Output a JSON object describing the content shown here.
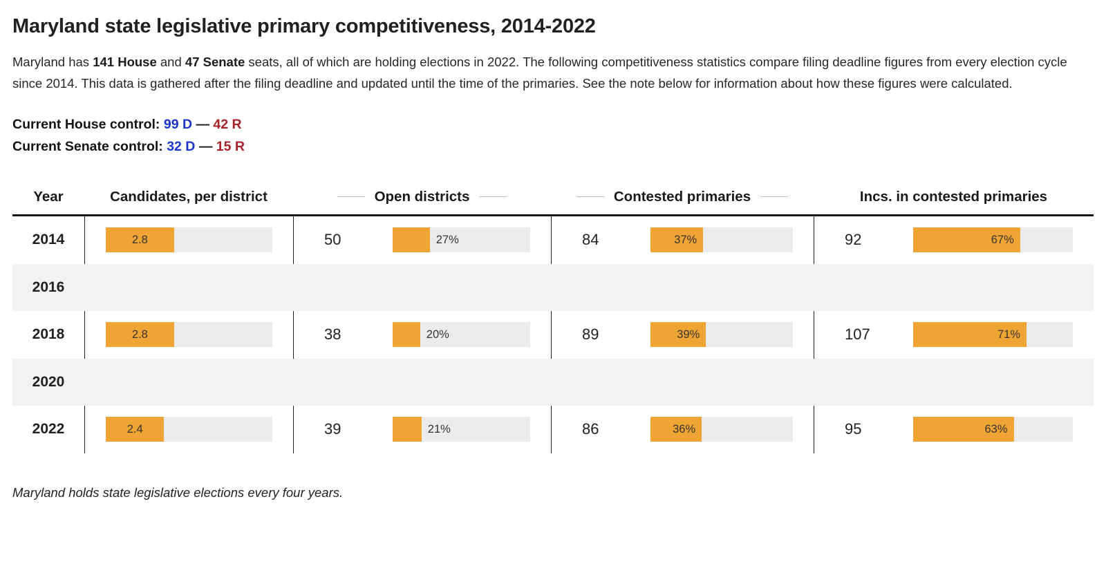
{
  "page": {
    "title": "Maryland state legislative primary competitiveness, 2014-2022",
    "footnote": "Maryland holds state legislative elections every four years."
  },
  "intro": {
    "t1": "Maryland has ",
    "b1": "141 House",
    "t2": " and ",
    "b2": "47 Senate",
    "t3": " seats, all of which are holding elections in 2022. The following competitiveness statistics compare filing deadline figures from every election cycle since 2014. This data is gathered after the filing deadline and updated until the time of the primaries. See the note below for information about how these figures were calculated."
  },
  "controls": {
    "dash": "—",
    "house": {
      "label": "Current House control:",
      "dem": "99 D",
      "rep": "42 R"
    },
    "senate": {
      "label": "Current Senate control:",
      "dem": "32 D",
      "rep": "15 R"
    }
  },
  "colors": {
    "orange": "#F0A433",
    "track": "#EBEBEB",
    "band": "#F2F2F2",
    "dem-blue": "#1D36C9",
    "rep-red": "#A8232B"
  },
  "table": {
    "headers": {
      "year": "Year",
      "candidates": "Candidates, per district",
      "open": "Open districts",
      "contested": "Contested primaries",
      "incs": "Incs. in contested primaries"
    },
    "rows": [
      {
        "year": "2014",
        "empty": false,
        "candidates": {
          "value": "2.8",
          "pct": 41
        },
        "open": {
          "count": "50",
          "pct": 27,
          "label": "27%"
        },
        "contested": {
          "count": "84",
          "pct": 37,
          "label": "37%"
        },
        "incs": {
          "count": "92",
          "pct": 67,
          "label": "67%"
        }
      },
      {
        "year": "2016",
        "empty": true
      },
      {
        "year": "2018",
        "empty": false,
        "candidates": {
          "value": "2.8",
          "pct": 41
        },
        "open": {
          "count": "38",
          "pct": 20,
          "label": "20%"
        },
        "contested": {
          "count": "89",
          "pct": 39,
          "label": "39%"
        },
        "incs": {
          "count": "107",
          "pct": 71,
          "label": "71%"
        }
      },
      {
        "year": "2020",
        "empty": true
      },
      {
        "year": "2022",
        "empty": false,
        "candidates": {
          "value": "2.4",
          "pct": 35
        },
        "open": {
          "count": "39",
          "pct": 21,
          "label": "21%"
        },
        "contested": {
          "count": "86",
          "pct": 36,
          "label": "36%"
        },
        "incs": {
          "count": "95",
          "pct": 63,
          "label": "63%"
        }
      }
    ]
  },
  "chart_data": {
    "type": "table",
    "title": "Maryland state legislative primary competitiveness, 2014-2022",
    "categories": [
      "2014",
      "2016",
      "2018",
      "2020",
      "2022"
    ],
    "series": [
      {
        "name": "Candidates, per district",
        "values": [
          2.8,
          null,
          2.8,
          null,
          2.4
        ]
      },
      {
        "name": "Open districts (count)",
        "values": [
          50,
          null,
          38,
          null,
          39
        ]
      },
      {
        "name": "Open districts (% of districts)",
        "values": [
          27,
          null,
          20,
          null,
          21
        ]
      },
      {
        "name": "Contested primaries (count)",
        "values": [
          84,
          null,
          89,
          null,
          86
        ]
      },
      {
        "name": "Contested primaries (%)",
        "values": [
          37,
          null,
          39,
          null,
          36
        ]
      },
      {
        "name": "Incumbents in contested primaries (count)",
        "values": [
          92,
          null,
          107,
          null,
          95
        ]
      },
      {
        "name": "Incumbents in contested primaries (%)",
        "values": [
          67,
          null,
          71,
          null,
          63
        ]
      }
    ],
    "notes": [
      "Rows for 2016 and 2020 are empty; Maryland holds state legislative elections every four years.",
      "Current House control: 99 D — 42 R",
      "Current Senate control: 32 D — 15 R"
    ],
    "legend_position": "none",
    "bar_color": "#F0A433"
  }
}
